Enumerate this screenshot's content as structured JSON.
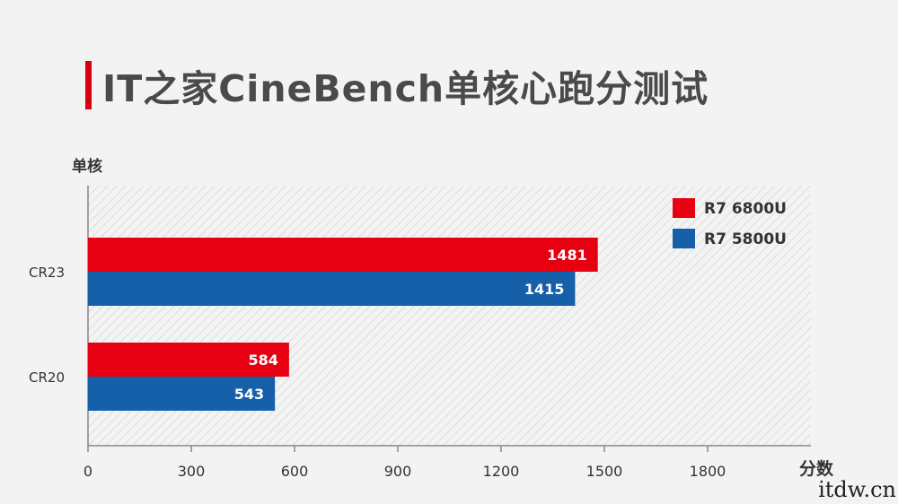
{
  "title": "IT之家CineBench单核心跑分测试",
  "watermark": "itdw.cn",
  "colors": {
    "series1": "#e60012",
    "series2": "#1660aa",
    "title_accent": "#d7000f"
  },
  "chart_data": {
    "type": "bar",
    "orientation": "horizontal",
    "categories": [
      "CR23",
      "CR20"
    ],
    "series": [
      {
        "name": "R7 6800U",
        "color": "#e60012",
        "values": [
          1481,
          584
        ]
      },
      {
        "name": "R7 5800U",
        "color": "#1660aa",
        "values": [
          1415,
          543
        ]
      }
    ],
    "ylabel": "单核",
    "xlabel": "分数",
    "xlim": [
      0,
      2100
    ],
    "xticks": [
      0,
      300,
      600,
      900,
      1200,
      1500,
      1800
    ],
    "grid": "hatched background",
    "legend": "top-right"
  }
}
